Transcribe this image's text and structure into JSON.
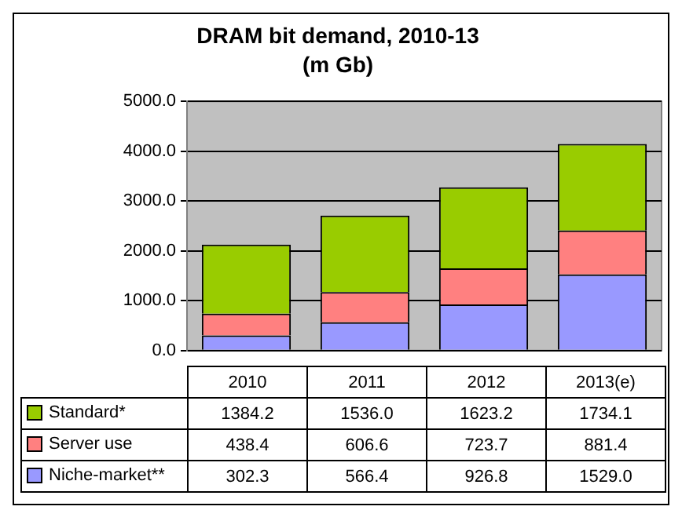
{
  "chart_data": {
    "type": "bar",
    "title": "DRAM bit demand, 2010-13",
    "subtitle": "(m Gb)",
    "categories": [
      "2010",
      "2011",
      "2012",
      "2013(e)"
    ],
    "stacked": true,
    "series": [
      {
        "name": "Niche-market**",
        "color": "#9999ff",
        "values": [
          302.3,
          566.4,
          926.8,
          1529.0
        ],
        "value_labels": [
          "302.3",
          "566.4",
          "926.8",
          "1529.0"
        ]
      },
      {
        "name": "Server use",
        "color": "#ff8080",
        "values": [
          438.4,
          606.6,
          723.7,
          881.4
        ],
        "value_labels": [
          "438.4",
          "606.6",
          "723.7",
          "881.4"
        ]
      },
      {
        "name": "Standard*",
        "color": "#99cc00",
        "values": [
          1384.2,
          1536.0,
          1623.2,
          1734.1
        ],
        "value_labels": [
          "1384.2",
          "1536.0",
          "1623.2",
          "1734.1"
        ]
      }
    ],
    "ylim": [
      0,
      5000
    ],
    "yticks": [
      {
        "value": 0,
        "label": "0.0"
      },
      {
        "value": 1000,
        "label": "1000.0"
      },
      {
        "value": 2000,
        "label": "2000.0"
      },
      {
        "value": 3000,
        "label": "3000.0"
      },
      {
        "value": 4000,
        "label": "4000.0"
      },
      {
        "value": 5000,
        "label": "5000.0"
      }
    ],
    "grid": "y",
    "legend": "bottom"
  }
}
